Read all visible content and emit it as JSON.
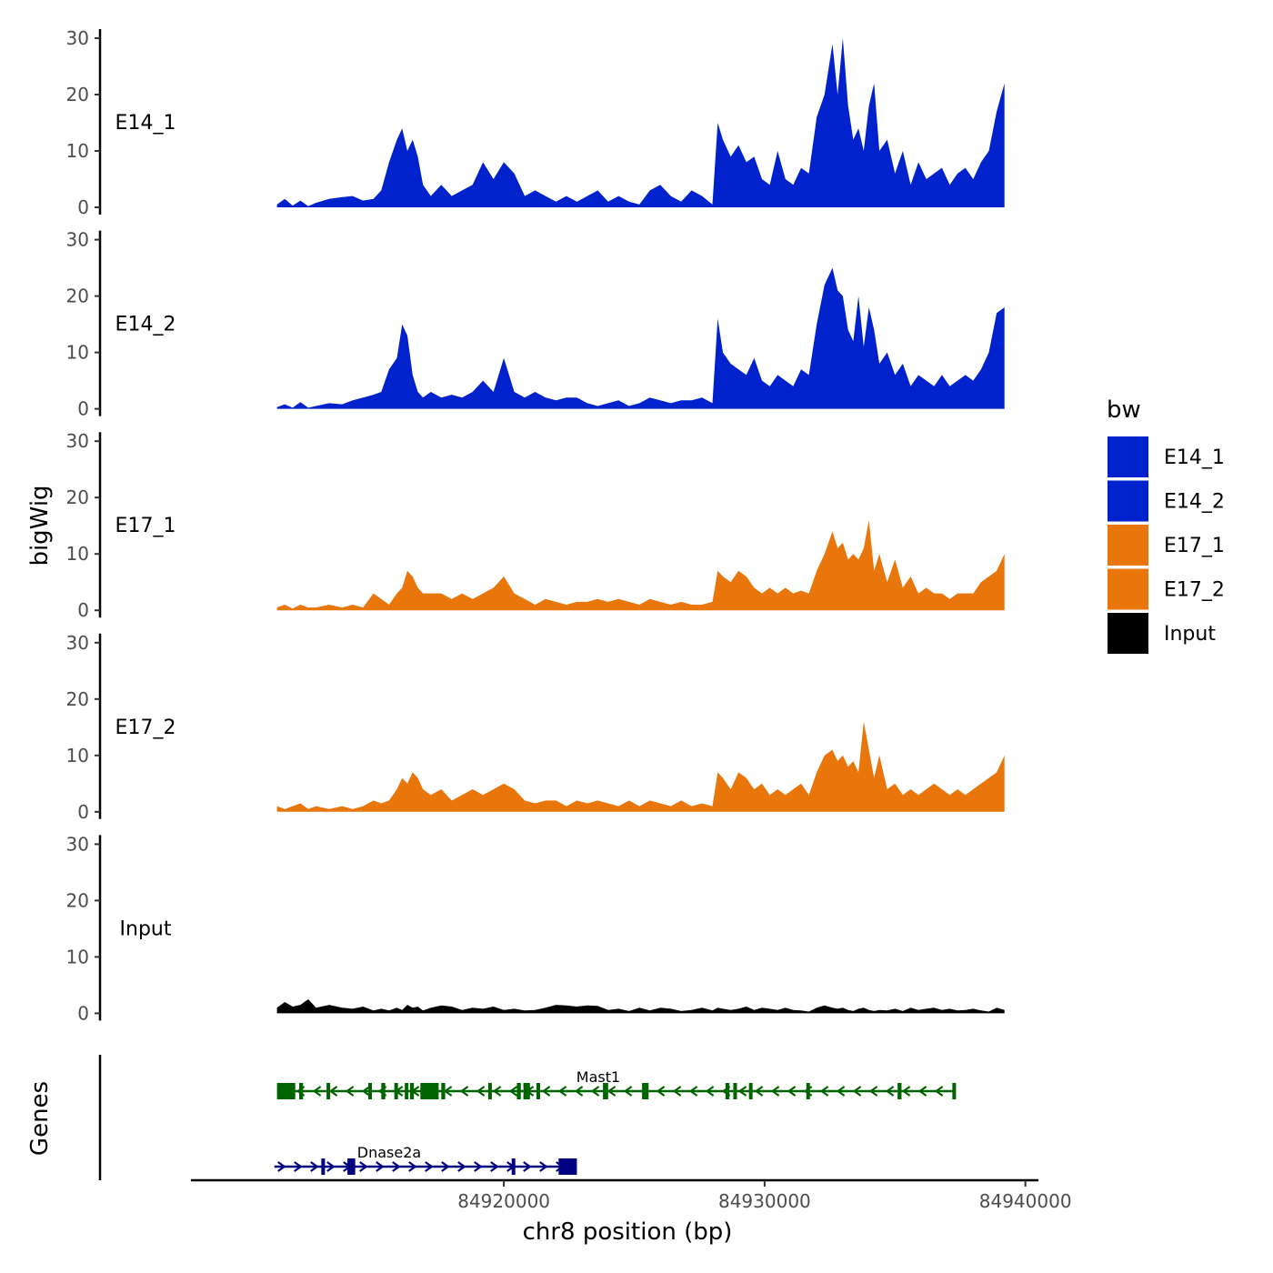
{
  "chart_data": {
    "type": "area",
    "ylabel": "bigWig",
    "xlabel": "chr8 position (bp)",
    "genes_label": "Genes",
    "ylim": [
      0,
      30
    ],
    "y_ticks": [
      0,
      10,
      20,
      30
    ],
    "x_range": [
      84908000,
      84940500
    ],
    "x_ticks": [
      {
        "value": 84920000,
        "label": "84920000"
      },
      {
        "value": 84930000,
        "label": "84930000"
      },
      {
        "value": 84940000,
        "label": "84940000"
      }
    ],
    "legend": {
      "title": "bw",
      "entries": [
        {
          "name": "E14_1",
          "color": "#0022cc"
        },
        {
          "name": "E14_2",
          "color": "#0022cc"
        },
        {
          "name": "E17_1",
          "color": "#e8760a"
        },
        {
          "name": "E17_2",
          "color": "#e8760a"
        },
        {
          "name": "Input",
          "color": "#000000"
        }
      ]
    },
    "tracks": [
      {
        "name": "E14_1",
        "color": "#0022cc",
        "x": [
          84911300,
          84911600,
          84911900,
          84912200,
          84912500,
          84912800,
          84913300,
          84913800,
          84914200,
          84914600,
          84915000,
          84915300,
          84915600,
          84915900,
          84916100,
          84916300,
          84916500,
          84916700,
          84916900,
          84917200,
          84917600,
          84918000,
          84918400,
          84918800,
          84919200,
          84919600,
          84920000,
          84920400,
          84920800,
          84921200,
          84921600,
          84922000,
          84922400,
          84922800,
          84923200,
          84923600,
          84924000,
          84924400,
          84924800,
          84925200,
          84925600,
          84926000,
          84926400,
          84926800,
          84927200,
          84927600,
          84928000,
          84928200,
          84928400,
          84928700,
          84929000,
          84929300,
          84929600,
          84929900,
          84930200,
          84930500,
          84930800,
          84931100,
          84931400,
          84931700,
          84932000,
          84932300,
          84932600,
          84932800,
          84933000,
          84933200,
          84933400,
          84933600,
          84933800,
          84934000,
          84934200,
          84934400,
          84934700,
          84935000,
          84935300,
          84935600,
          84935900,
          84936200,
          84936500,
          84936800,
          84937100,
          84937400,
          84937700,
          84938000,
          84938300,
          84938600,
          84938900,
          84939200
        ],
        "values": [
          0.5,
          1.5,
          0.3,
          1.2,
          0.2,
          0.8,
          1.5,
          1.8,
          2,
          1.2,
          1.5,
          3,
          8,
          12,
          14,
          10,
          12,
          9,
          4,
          2,
          4,
          2,
          3,
          4,
          8,
          5,
          8,
          6,
          2,
          3,
          2,
          1,
          2,
          1,
          2,
          3,
          1,
          2,
          1,
          0.5,
          3,
          4,
          2,
          1,
          3,
          2,
          0.5,
          15,
          12,
          9,
          11,
          8,
          9,
          5,
          4,
          10,
          5,
          4,
          7,
          6,
          16,
          20,
          29,
          20,
          30,
          18,
          12,
          14,
          10,
          18,
          22,
          10,
          12,
          6,
          10,
          4,
          8,
          5,
          6,
          7,
          4,
          6,
          7,
          5,
          8,
          10,
          17,
          22
        ]
      },
      {
        "name": "E14_2",
        "color": "#0022cc",
        "x": [
          84911300,
          84911600,
          84911900,
          84912200,
          84912500,
          84912800,
          84913300,
          84913800,
          84914200,
          84914600,
          84915000,
          84915300,
          84915600,
          84915900,
          84916100,
          84916300,
          84916500,
          84916700,
          84916900,
          84917200,
          84917600,
          84918000,
          84918400,
          84918800,
          84919200,
          84919600,
          84920000,
          84920400,
          84920800,
          84921200,
          84921600,
          84922000,
          84922400,
          84922800,
          84923200,
          84923600,
          84924000,
          84924400,
          84924800,
          84925200,
          84925600,
          84926000,
          84926400,
          84926800,
          84927200,
          84927600,
          84928000,
          84928200,
          84928400,
          84928700,
          84929000,
          84929300,
          84929600,
          84929900,
          84930200,
          84930500,
          84930800,
          84931100,
          84931400,
          84931700,
          84932000,
          84932300,
          84932600,
          84932800,
          84933000,
          84933200,
          84933400,
          84933600,
          84933800,
          84934000,
          84934200,
          84934400,
          84934700,
          84935000,
          84935300,
          84935600,
          84935900,
          84936200,
          84936500,
          84936800,
          84937100,
          84937400,
          84937700,
          84938000,
          84938300,
          84938600,
          84938900,
          84939200
        ],
        "values": [
          0.3,
          0.8,
          0.2,
          1.2,
          0.2,
          0.5,
          1,
          0.8,
          1.5,
          2,
          2.5,
          3,
          7,
          9,
          15,
          13,
          6,
          3,
          2,
          3,
          2,
          2.5,
          2,
          3,
          5,
          3,
          9,
          3,
          2,
          3,
          2,
          1.5,
          2,
          2,
          1,
          0.5,
          1,
          1.5,
          0.5,
          1,
          2,
          1.5,
          1,
          1.5,
          1.5,
          2,
          1,
          16,
          10,
          8,
          7,
          6,
          9,
          5,
          4,
          6,
          5,
          4,
          7,
          6,
          15,
          22,
          25,
          21,
          20,
          14,
          12,
          20,
          11,
          18,
          14,
          8,
          10,
          6,
          8,
          4,
          6,
          5,
          4,
          6,
          4,
          5,
          6,
          5,
          7,
          10,
          17,
          18
        ]
      },
      {
        "name": "E17_1",
        "color": "#e8760a",
        "x": [
          84911300,
          84911600,
          84911900,
          84912200,
          84912500,
          84912800,
          84913300,
          84913800,
          84914200,
          84914600,
          84915000,
          84915300,
          84915600,
          84915900,
          84916100,
          84916300,
          84916500,
          84916700,
          84916900,
          84917200,
          84917600,
          84918000,
          84918400,
          84918800,
          84919200,
          84919600,
          84920000,
          84920400,
          84920800,
          84921200,
          84921600,
          84922000,
          84922400,
          84922800,
          84923200,
          84923600,
          84924000,
          84924400,
          84924800,
          84925200,
          84925600,
          84926000,
          84926400,
          84926800,
          84927200,
          84927600,
          84928000,
          84928200,
          84928400,
          84928700,
          84929000,
          84929300,
          84929600,
          84929900,
          84930200,
          84930500,
          84930800,
          84931100,
          84931400,
          84931700,
          84932000,
          84932300,
          84932600,
          84932800,
          84933000,
          84933200,
          84933400,
          84933600,
          84933800,
          84934000,
          84934200,
          84934400,
          84934700,
          84935000,
          84935300,
          84935600,
          84935900,
          84936200,
          84936500,
          84936800,
          84937100,
          84937400,
          84937700,
          84938000,
          84938300,
          84938600,
          84938900,
          84939200
        ],
        "values": [
          0.5,
          1,
          0.3,
          1,
          0.5,
          0.5,
          1,
          0.5,
          1,
          0.5,
          3,
          2,
          1,
          3,
          4,
          7,
          6,
          4,
          3,
          3,
          3,
          2,
          3,
          2,
          3,
          4,
          6,
          3,
          2,
          1,
          2,
          1.5,
          1,
          1.5,
          1.5,
          2,
          1.5,
          2,
          1.5,
          1,
          2,
          1.5,
          1,
          1.5,
          1,
          1,
          1.5,
          7,
          6,
          5,
          7,
          6,
          4,
          3,
          4,
          3,
          4,
          3,
          3.5,
          3,
          7,
          10,
          14,
          11,
          12,
          9,
          10,
          9,
          11,
          16,
          7,
          10,
          5,
          9,
          4,
          6,
          3,
          4,
          3,
          3,
          2,
          3,
          3,
          3,
          5,
          6,
          7,
          10
        ]
      },
      {
        "name": "E17_2",
        "color": "#e8760a",
        "x": [
          84911300,
          84911600,
          84911900,
          84912200,
          84912500,
          84912800,
          84913300,
          84913800,
          84914200,
          84914600,
          84915000,
          84915300,
          84915600,
          84915900,
          84916100,
          84916300,
          84916500,
          84916700,
          84916900,
          84917200,
          84917600,
          84918000,
          84918400,
          84918800,
          84919200,
          84919600,
          84920000,
          84920400,
          84920800,
          84921200,
          84921600,
          84922000,
          84922400,
          84922800,
          84923200,
          84923600,
          84924000,
          84924400,
          84924800,
          84925200,
          84925600,
          84926000,
          84926400,
          84926800,
          84927200,
          84927600,
          84928000,
          84928200,
          84928400,
          84928700,
          84929000,
          84929300,
          84929600,
          84929900,
          84930200,
          84930500,
          84930800,
          84931100,
          84931400,
          84931700,
          84932000,
          84932300,
          84932600,
          84932800,
          84933000,
          84933200,
          84933400,
          84933600,
          84933800,
          84934000,
          84934200,
          84934400,
          84934700,
          84935000,
          84935300,
          84935600,
          84935900,
          84936200,
          84936500,
          84936800,
          84937100,
          84937400,
          84937700,
          84938000,
          84938300,
          84938600,
          84938900,
          84939200
        ],
        "values": [
          1,
          0.5,
          1,
          1.5,
          0.5,
          1,
          0.5,
          1,
          0.5,
          1,
          2,
          1.5,
          2,
          4,
          6,
          5,
          7,
          6,
          4,
          3,
          4,
          2,
          3,
          4,
          3,
          4,
          5,
          4,
          2,
          1.5,
          2,
          2,
          1,
          2,
          1.5,
          2,
          1.5,
          1,
          2,
          1,
          2,
          1.5,
          1,
          2,
          1,
          1.5,
          1,
          7,
          6,
          4,
          7,
          6,
          4,
          5,
          3,
          4,
          3,
          4,
          5,
          3,
          7,
          10,
          11,
          9,
          10,
          8,
          9,
          7,
          16,
          11,
          6,
          10,
          4,
          5,
          3,
          4,
          3,
          4,
          5,
          4,
          3,
          4,
          3,
          4,
          5,
          6,
          7,
          10
        ]
      },
      {
        "name": "Input",
        "color": "#000000",
        "x": [
          84911300,
          84911600,
          84911900,
          84912200,
          84912500,
          84912800,
          84913300,
          84913800,
          84914200,
          84914600,
          84915000,
          84915300,
          84915600,
          84915900,
          84916100,
          84916300,
          84916500,
          84916700,
          84916900,
          84917200,
          84917600,
          84918000,
          84918400,
          84918800,
          84919200,
          84919600,
          84920000,
          84920400,
          84920800,
          84921200,
          84921600,
          84922000,
          84922400,
          84922800,
          84923200,
          84923600,
          84924000,
          84924400,
          84924800,
          84925200,
          84925600,
          84926000,
          84926400,
          84926800,
          84927200,
          84927600,
          84928000,
          84928200,
          84928400,
          84928700,
          84929000,
          84929300,
          84929600,
          84929900,
          84930200,
          84930500,
          84930800,
          84931100,
          84931400,
          84931700,
          84932000,
          84932300,
          84932600,
          84932800,
          84933000,
          84933200,
          84933400,
          84933600,
          84933800,
          84934000,
          84934200,
          84934400,
          84934700,
          84935000,
          84935300,
          84935600,
          84935900,
          84936200,
          84936500,
          84936800,
          84937100,
          84937400,
          84937700,
          84938000,
          84938300,
          84938600,
          84938900,
          84939200
        ],
        "values": [
          1,
          2,
          1.2,
          1.5,
          2.5,
          1,
          1.5,
          1,
          0.8,
          1.2,
          0.5,
          0.8,
          0.5,
          1,
          0.6,
          1.5,
          1,
          1.2,
          0.5,
          1,
          1.4,
          1.2,
          0.6,
          1,
          0.8,
          1.2,
          0.6,
          0.8,
          0.5,
          0.6,
          1,
          1.5,
          1.4,
          1.2,
          1.4,
          1.3,
          0.6,
          0.8,
          0.4,
          1,
          0.5,
          1,
          0.8,
          0.4,
          0.6,
          1,
          0.5,
          1,
          0.8,
          0.6,
          0.8,
          1.2,
          0.6,
          1,
          0.8,
          0.6,
          1,
          0.6,
          0.5,
          0.3,
          1,
          1.4,
          1,
          0.8,
          1,
          0.6,
          0.4,
          0.8,
          1,
          0.6,
          0.4,
          0.6,
          0.5,
          0.8,
          0.4,
          1,
          0.6,
          0.8,
          1,
          0.6,
          0.8,
          0.5,
          0.6,
          0.8,
          0.5,
          0.3,
          1,
          0.6
        ]
      }
    ],
    "genes": [
      {
        "name": "Mast1",
        "color": "#006400",
        "strand": "-",
        "start": 84911300,
        "end": 84937300,
        "exons": [
          [
            84911300,
            84912000
          ],
          [
            84912150,
            84912300
          ],
          [
            84913200,
            84913320
          ],
          [
            84914800,
            84914900
          ],
          [
            84915300,
            84915450
          ],
          [
            84915800,
            84915900
          ],
          [
            84916200,
            84916300
          ],
          [
            84916400,
            84916550
          ],
          [
            84916800,
            84917500
          ],
          [
            84917600,
            84917750
          ],
          [
            84919400,
            84919500
          ],
          [
            84920500,
            84920650
          ],
          [
            84920750,
            84921000
          ],
          [
            84921250,
            84921350
          ],
          [
            84923800,
            84924000
          ],
          [
            84925300,
            84925550
          ],
          [
            84928500,
            84928650
          ],
          [
            84928800,
            84928900
          ],
          [
            84929400,
            84929500
          ],
          [
            84931600,
            84931650
          ],
          [
            84935100,
            84935250
          ],
          [
            84937200,
            84937300
          ]
        ]
      },
      {
        "name": "Dnase2a",
        "color": "#000080",
        "strand": "+",
        "start": 84911200,
        "end": 84922800,
        "exons": [
          [
            84913000,
            84913100
          ],
          [
            84914000,
            84914300
          ],
          [
            84920300,
            84920400
          ],
          [
            84922100,
            84922800
          ]
        ]
      }
    ]
  }
}
